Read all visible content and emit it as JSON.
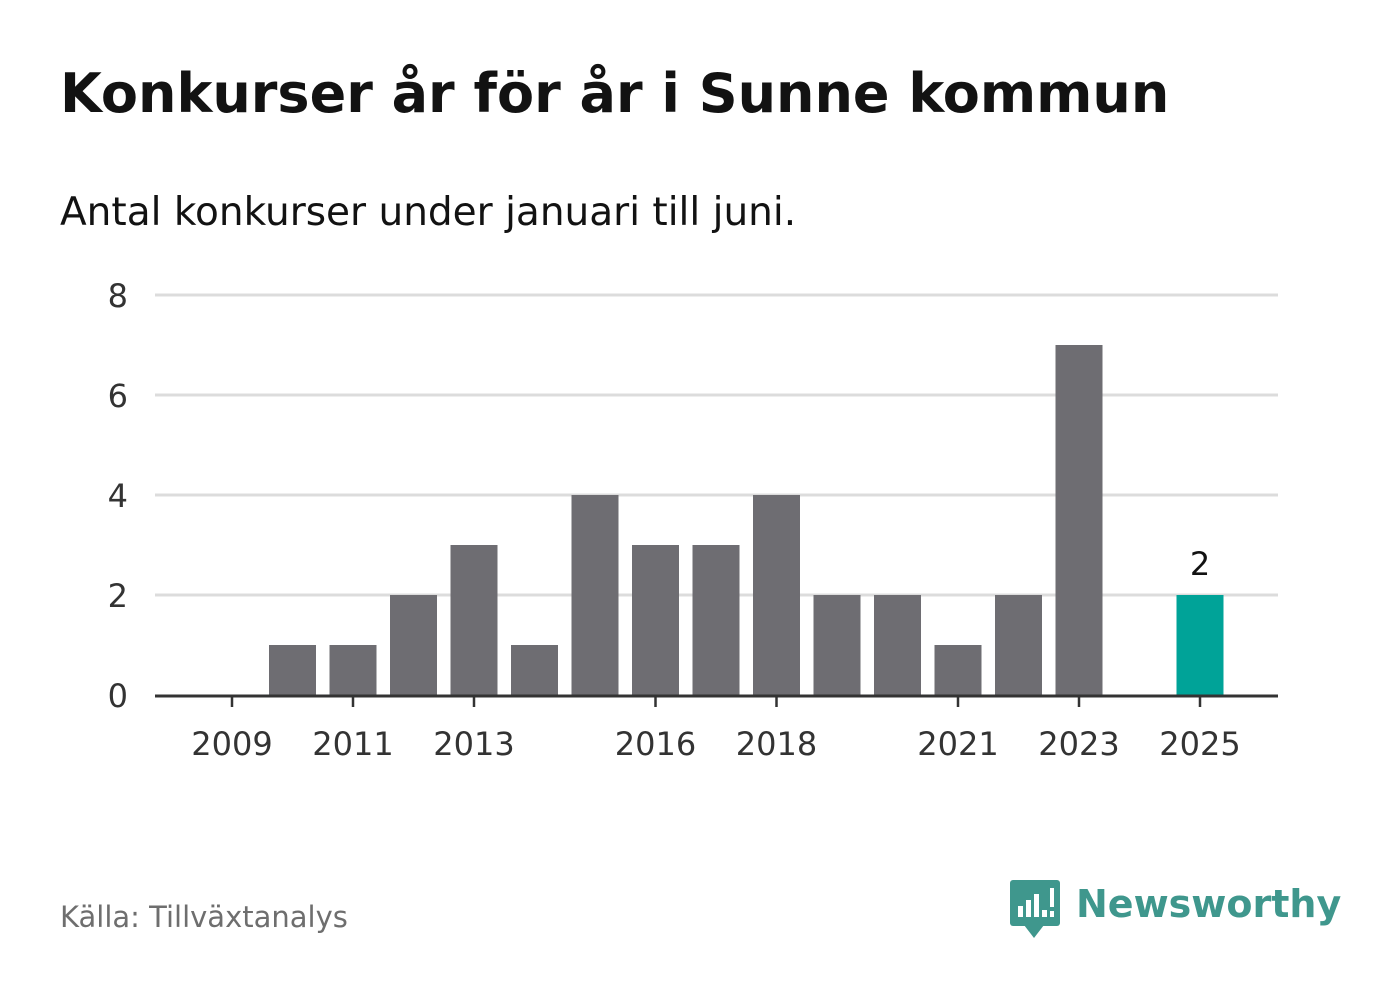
{
  "header": {
    "title": "Konkurser år för år i Sunne kommun",
    "subtitle": "Antal konkurser under januari till juni."
  },
  "footer": {
    "source": "Källa: Tillväxtanalys",
    "brand": "Newsworthy",
    "brand_icon": "bar-chart-speech-bubble-icon"
  },
  "colors": {
    "bar": "#6e6d72",
    "highlight": "#00a398",
    "grid": "#dcdcdc",
    "axis": "#333333",
    "text": "#333333",
    "brand": "#3f978d"
  },
  "chart_data": {
    "type": "bar",
    "categories": [
      2009,
      2010,
      2011,
      2012,
      2013,
      2014,
      2015,
      2016,
      2017,
      2018,
      2019,
      2020,
      2021,
      2022,
      2023,
      2024,
      2025
    ],
    "values": [
      0,
      1,
      1,
      2,
      3,
      1,
      4,
      3,
      3,
      4,
      2,
      2,
      1,
      2,
      7,
      0,
      2
    ],
    "x_tick_labels": [
      "2009",
      "2011",
      "2013",
      "2016",
      "2018",
      "2021",
      "2023",
      "2025"
    ],
    "y_ticks": [
      0,
      2,
      4,
      6,
      8
    ],
    "ylim": [
      0,
      8
    ],
    "highlight_category": 2025,
    "data_labels": [
      {
        "category": 2025,
        "label": "2"
      }
    ],
    "grid": true,
    "xlabel": "",
    "ylabel": ""
  }
}
